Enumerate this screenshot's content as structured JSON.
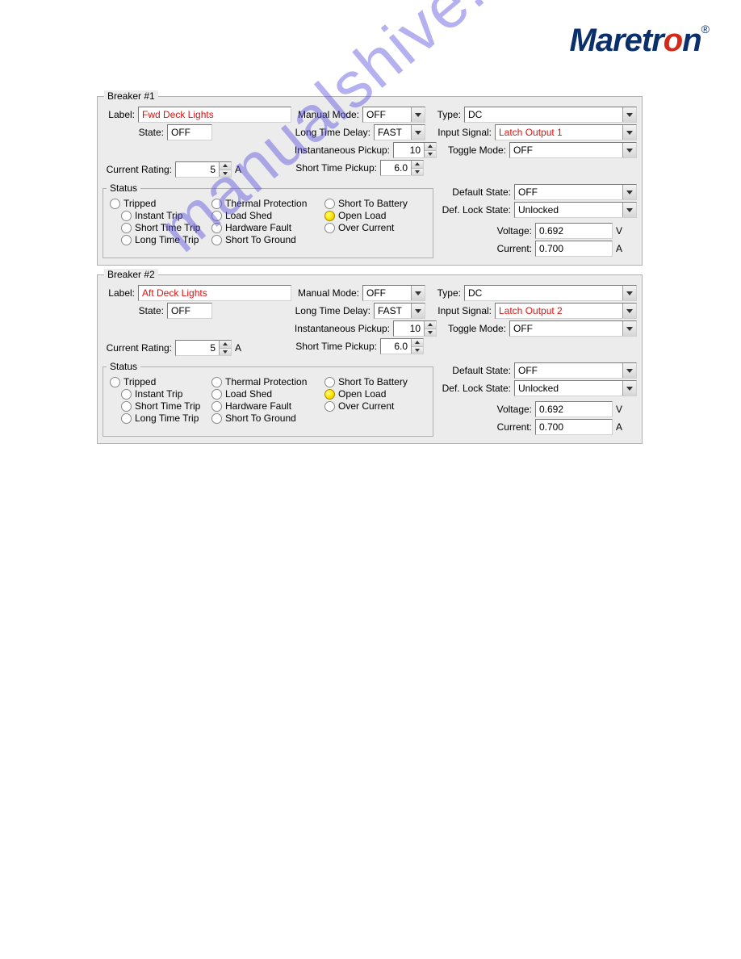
{
  "brand": {
    "text_pre": "Maretr",
    "text_o": "o",
    "text_post": "n",
    "reg": "®"
  },
  "watermark": "manualshive.com",
  "labels": {
    "label": "Label:",
    "state": "State:",
    "current_rating": "Current Rating:",
    "manual_mode": "Manual Mode:",
    "long_time_delay": "Long Time Delay:",
    "instantaneous_pickup": "Instantaneous Pickup:",
    "short_time_pickup": "Short Time Pickup:",
    "type": "Type:",
    "input_signal": "Input Signal:",
    "toggle_mode": "Toggle Mode:",
    "default_state": "Default State:",
    "def_lock_state": "Def. Lock State:",
    "voltage": "Voltage:",
    "current": "Current:",
    "status": "Status",
    "unit_a": "A",
    "unit_v": "V"
  },
  "status_items": {
    "tripped": "Tripped",
    "instant_trip": "Instant Trip",
    "short_time_trip": "Short Time Trip",
    "long_time_trip": "Long Time Trip",
    "thermal_protection": "Thermal Protection",
    "load_shed": "Load Shed",
    "hardware_fault": "Hardware Fault",
    "short_to_ground": "Short To Ground",
    "short_to_battery": "Short To Battery",
    "open_load": "Open Load",
    "over_current": "Over Current"
  },
  "breakers": [
    {
      "title": "Breaker #1",
      "label_value": "Fwd Deck Lights",
      "state": "OFF",
      "current_rating": "5",
      "manual_mode": "OFF",
      "long_time_delay": "FAST",
      "instantaneous_pickup": "10",
      "short_time_pickup": "6.0",
      "type": "DC",
      "input_signal": "Latch Output 1",
      "toggle_mode": "OFF",
      "default_state": "OFF",
      "def_lock_state": "Unlocked",
      "voltage": "0.692",
      "current": "0.700",
      "status_selected": "open_load"
    },
    {
      "title": "Breaker #2",
      "label_value": "Aft Deck Lights",
      "state": "OFF",
      "current_rating": "5",
      "manual_mode": "OFF",
      "long_time_delay": "FAST",
      "instantaneous_pickup": "10",
      "short_time_pickup": "6.0",
      "type": "DC",
      "input_signal": "Latch Output 2",
      "toggle_mode": "OFF",
      "default_state": "OFF",
      "def_lock_state": "Unlocked",
      "voltage": "0.692",
      "current": "0.700",
      "status_selected": "open_load"
    }
  ]
}
